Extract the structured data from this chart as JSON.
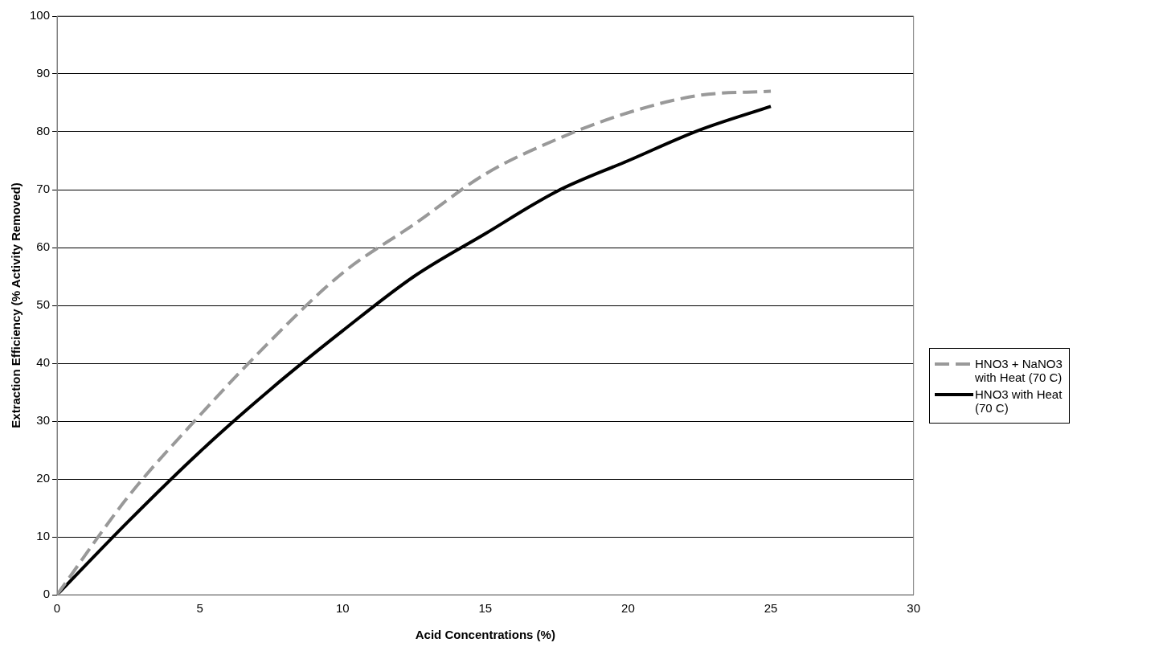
{
  "chart_data": {
    "type": "line",
    "xlabel": "Acid Concentrations (%)",
    "ylabel": "Extraction Efficiency (% Activity Removed)",
    "x": [
      0,
      2.5,
      5,
      7.5,
      10,
      12.5,
      15,
      17.5,
      20,
      22.5,
      25
    ],
    "series": [
      {
        "name": "HNO3 + NaNO3 with Heat (70 C)",
        "color": "#999999",
        "line_style": "dashed",
        "values": [
          0,
          17,
          31,
          44,
          55.6,
          64,
          72.7,
          78.7,
          83.3,
          86.3,
          87
        ]
      },
      {
        "name": "HNO3 with Heat (70 C)",
        "color": "#000000",
        "line_style": "solid",
        "values": [
          0,
          12.7,
          24.7,
          35.6,
          45.6,
          55,
          62.4,
          69.7,
          75,
          80.3,
          84.4
        ]
      }
    ],
    "xlim": [
      0,
      30
    ],
    "xticks": [
      0,
      5,
      10,
      15,
      20,
      25,
      30
    ],
    "ylim": [
      0,
      100
    ],
    "yticks": [
      0,
      10,
      20,
      30,
      40,
      50,
      60,
      70,
      80,
      90,
      100
    ],
    "grid": "y",
    "legend": "right",
    "marker": "none"
  }
}
